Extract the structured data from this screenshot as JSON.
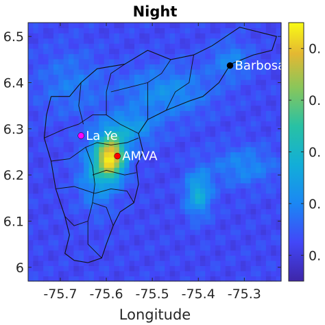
{
  "chart_data": {
    "type": "heatmap",
    "title": "Night",
    "xlabel": "Longitude",
    "ylabel": "",
    "xlim": [
      -75.77,
      -75.22
    ],
    "ylim": [
      5.97,
      6.53
    ],
    "xticks": [
      -75.7,
      -75.6,
      -75.5,
      -75.4,
      -75.3
    ],
    "xtick_labels": [
      "-75.7",
      "-75.6",
      "-75.5",
      "-75.4",
      "-75.3"
    ],
    "yticks": [
      6.0,
      6.1,
      6.2,
      6.3,
      6.4,
      6.5
    ],
    "ytick_labels": [
      "6",
      "6.1",
      "6.2",
      "6.3",
      "6.4",
      "6.5"
    ],
    "colormap": "parula",
    "colorbar": {
      "position": "right",
      "tick_fractions": [
        0.1,
        0.3,
        0.5,
        0.7,
        0.9
      ],
      "tick_labels": [
        "0.",
        "0.",
        "0.",
        "0.",
        "0."
      ]
    },
    "grid": false,
    "field": {
      "base": 0.15,
      "noise": 0.05,
      "hotspots": [
        {
          "lon": -75.59,
          "lat": 6.24,
          "sx": 0.022,
          "sy": 0.032,
          "amp": 0.75
        },
        {
          "lon": -75.62,
          "lat": 6.2,
          "sx": 0.03,
          "sy": 0.05,
          "amp": 0.22
        },
        {
          "lon": -75.55,
          "lat": 6.3,
          "sx": 0.04,
          "sy": 0.025,
          "amp": 0.22
        },
        {
          "lon": -75.47,
          "lat": 6.38,
          "sx": 0.07,
          "sy": 0.04,
          "amp": 0.18
        },
        {
          "lon": -75.4,
          "lat": 6.16,
          "sx": 0.02,
          "sy": 0.035,
          "amp": 0.3
        },
        {
          "lon": -75.3,
          "lat": 6.22,
          "sx": 0.05,
          "sy": 0.03,
          "amp": 0.16
        },
        {
          "lon": -75.68,
          "lat": 6.4,
          "sx": 0.05,
          "sy": 0.05,
          "amp": 0.12
        },
        {
          "lon": -75.33,
          "lat": 6.45,
          "sx": 0.03,
          "sy": 0.03,
          "amp": 0.15
        }
      ]
    },
    "sites": [
      {
        "name": "Barbosa",
        "lon": -75.331,
        "lat": 6.437,
        "color": "#000000"
      },
      {
        "name": "La Ye",
        "lon": -75.655,
        "lat": 6.285,
        "color": "#ff00ff"
      },
      {
        "name": "AMVA",
        "lon": -75.576,
        "lat": 6.241,
        "color": "#ff0000"
      }
    ],
    "boundaries": {
      "outer": [
        [
          -75.72,
          6.37
        ],
        [
          -75.68,
          6.37
        ],
        [
          -75.655,
          6.4
        ],
        [
          -75.62,
          6.43
        ],
        [
          -75.56,
          6.44
        ],
        [
          -75.51,
          6.47
        ],
        [
          -75.46,
          6.45
        ],
        [
          -75.41,
          6.46
        ],
        [
          -75.37,
          6.48
        ],
        [
          -75.31,
          6.52
        ],
        [
          -75.27,
          6.51
        ],
        [
          -75.23,
          6.5
        ],
        [
          -75.24,
          6.47
        ],
        [
          -75.28,
          6.46
        ],
        [
          -75.33,
          6.44
        ],
        [
          -75.355,
          6.4
        ],
        [
          -75.39,
          6.37
        ],
        [
          -75.42,
          6.36
        ],
        [
          -75.47,
          6.34
        ],
        [
          -75.51,
          6.32
        ],
        [
          -75.53,
          6.29
        ],
        [
          -75.52,
          6.25
        ],
        [
          -75.535,
          6.22
        ],
        [
          -75.53,
          6.18
        ],
        [
          -75.54,
          6.14
        ],
        [
          -75.57,
          6.12
        ],
        [
          -75.585,
          6.09
        ],
        [
          -75.6,
          6.05
        ],
        [
          -75.61,
          6.02
        ],
        [
          -75.64,
          6.01
        ],
        [
          -75.67,
          6.015
        ],
        [
          -75.69,
          6.03
        ],
        [
          -75.68,
          6.07
        ],
        [
          -75.69,
          6.11
        ],
        [
          -75.71,
          6.17
        ],
        [
          -75.72,
          6.23
        ],
        [
          -75.735,
          6.28
        ],
        [
          -75.73,
          6.33
        ],
        [
          -75.72,
          6.37
        ]
      ],
      "inner": [
        [
          [
            -75.735,
            6.28
          ],
          [
            -75.69,
            6.3
          ],
          [
            -75.66,
            6.31
          ],
          [
            -75.63,
            6.33
          ],
          [
            -75.6,
            6.33
          ],
          [
            -75.57,
            6.31
          ],
          [
            -75.53,
            6.29
          ]
        ],
        [
          [
            -75.65,
            6.31
          ],
          [
            -75.66,
            6.35
          ],
          [
            -75.655,
            6.4
          ]
        ],
        [
          [
            -75.6,
            6.33
          ],
          [
            -75.6,
            6.38
          ],
          [
            -75.59,
            6.42
          ],
          [
            -75.56,
            6.44
          ]
        ],
        [
          [
            -75.59,
            6.38
          ],
          [
            -75.55,
            6.39
          ],
          [
            -75.51,
            6.4
          ],
          [
            -75.48,
            6.42
          ],
          [
            -75.46,
            6.45
          ]
        ],
        [
          [
            -75.51,
            6.4
          ],
          [
            -75.51,
            6.36
          ],
          [
            -75.51,
            6.32
          ]
        ],
        [
          [
            -75.47,
            6.34
          ],
          [
            -75.45,
            6.38
          ],
          [
            -75.42,
            6.4
          ],
          [
            -75.41,
            6.46
          ]
        ],
        [
          [
            -75.645,
            6.26
          ],
          [
            -75.62,
            6.27
          ],
          [
            -75.59,
            6.265
          ],
          [
            -75.555,
            6.27
          ],
          [
            -75.53,
            6.28
          ]
        ],
        [
          [
            -75.645,
            6.26
          ],
          [
            -75.63,
            6.22
          ],
          [
            -75.625,
            6.18
          ],
          [
            -75.63,
            6.14
          ],
          [
            -75.64,
            6.1
          ],
          [
            -75.64,
            6.05
          ],
          [
            -75.61,
            6.02
          ]
        ],
        [
          [
            -75.63,
            6.2
          ],
          [
            -75.6,
            6.21
          ],
          [
            -75.56,
            6.2
          ],
          [
            -75.535,
            6.205
          ]
        ],
        [
          [
            -75.625,
            6.16
          ],
          [
            -75.59,
            6.17
          ],
          [
            -75.555,
            6.165
          ],
          [
            -75.54,
            6.14
          ]
        ],
        [
          [
            -75.63,
            6.14
          ],
          [
            -75.6,
            6.13
          ],
          [
            -75.585,
            6.09
          ]
        ],
        [
          [
            -75.64,
            6.1
          ],
          [
            -75.67,
            6.09
          ],
          [
            -75.69,
            6.11
          ]
        ],
        [
          [
            -75.71,
            6.17
          ],
          [
            -75.67,
            6.175
          ],
          [
            -75.625,
            6.16
          ]
        ],
        [
          [
            -75.72,
            6.23
          ],
          [
            -75.68,
            6.235
          ],
          [
            -75.645,
            6.26
          ]
        ]
      ]
    }
  }
}
